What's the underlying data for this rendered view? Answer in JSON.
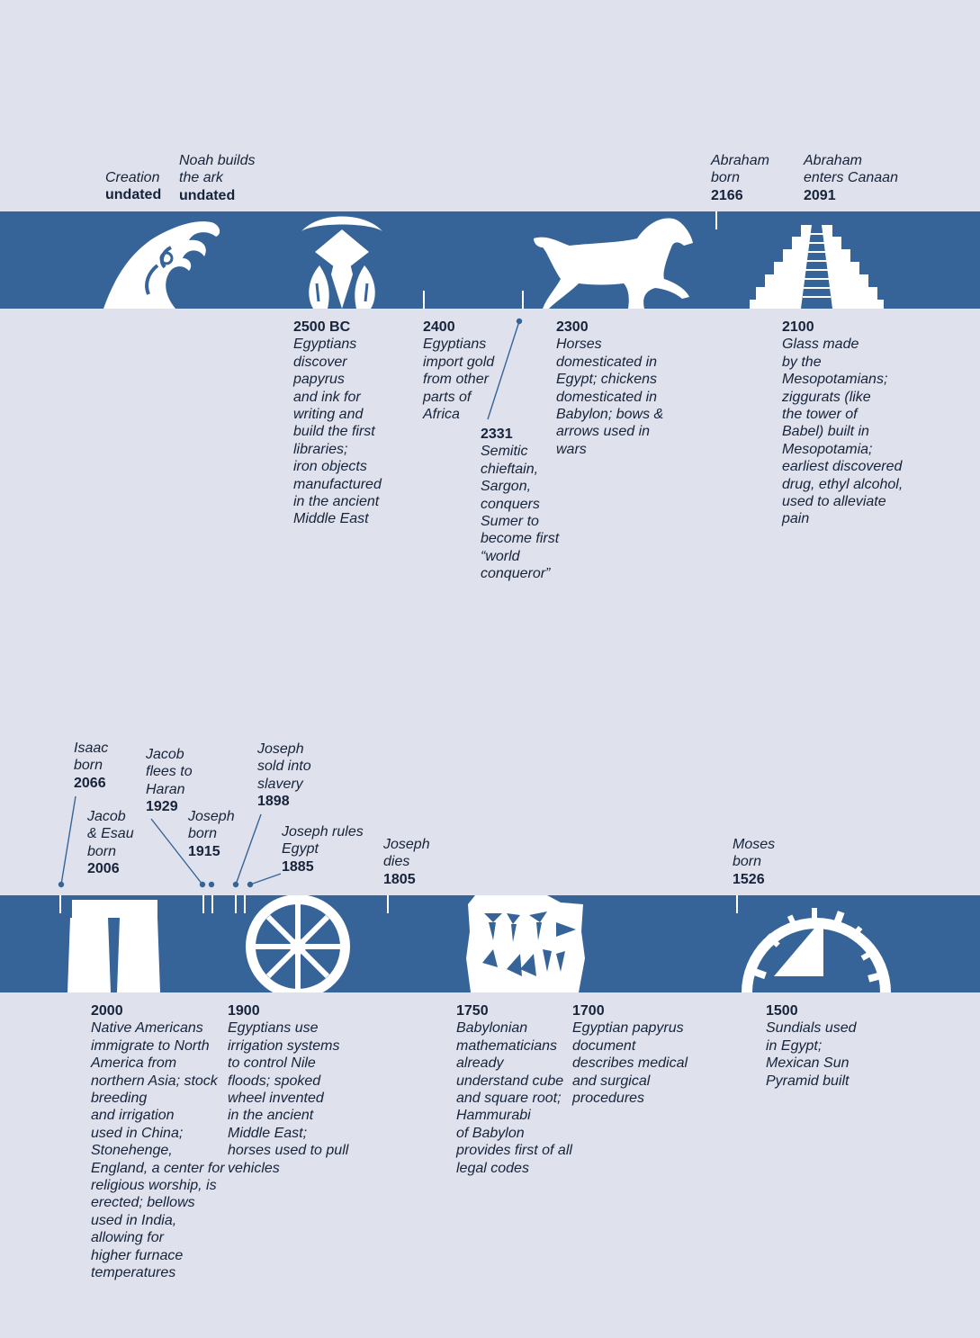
{
  "colors": {
    "background": "#dfe2ec",
    "band": "#366498",
    "icon": "#ffffff",
    "text": "#16233a"
  },
  "top_timeline": {
    "above": [
      {
        "lines": [
          "Creation"
        ],
        "year": "undated"
      },
      {
        "lines": [
          "Noah builds",
          "the ark"
        ],
        "year": "undated"
      },
      {
        "lines": [
          "Abraham",
          "born"
        ],
        "year": "2166"
      },
      {
        "lines": [
          "Abraham",
          "enters Canaan"
        ],
        "year": "2091"
      }
    ],
    "below": [
      {
        "year": "2500 BC",
        "lines": [
          "Egyptians",
          "discover",
          "papyrus",
          "and ink for",
          "writing and",
          "build the first",
          "libraries;",
          "iron objects",
          "manufactured",
          "in the ancient",
          "Middle East"
        ]
      },
      {
        "year": "2400",
        "lines": [
          "Egyptians",
          "import gold",
          "from other",
          "parts of",
          "Africa"
        ]
      },
      {
        "year": "2331",
        "lines": [
          "Semitic",
          "chieftain,",
          "Sargon,",
          "conquers",
          "Sumer to",
          "become first",
          "“world",
          "conqueror”"
        ]
      },
      {
        "year": "2300",
        "lines": [
          "Horses",
          "domesticated in",
          "Egypt; chickens",
          "domesticated in",
          "Babylon; bows &",
          "arrows used in",
          "wars"
        ]
      },
      {
        "year": "2100",
        "lines": [
          "Glass made",
          "by the",
          "Mesopotamians;",
          "ziggurats (like",
          "the tower of",
          "Babel) built in",
          "Mesopotamia;",
          "earliest discovered",
          "drug, ethyl alcohol,",
          "used to alleviate",
          "pain"
        ]
      }
    ],
    "icons": [
      "wave-icon",
      "papyrus-plant-icon",
      "horse-icon",
      "ziggurat-icon"
    ]
  },
  "bottom_timeline": {
    "above": [
      {
        "lines": [
          "Isaac",
          "born"
        ],
        "year": "2066"
      },
      {
        "lines": [
          "Jacob",
          "& Esau",
          "born"
        ],
        "year": "2006"
      },
      {
        "lines": [
          "Jacob",
          "flees to",
          "Haran"
        ],
        "year": "1929"
      },
      {
        "lines": [
          "Joseph",
          "born"
        ],
        "year": "1915"
      },
      {
        "lines": [
          "Joseph",
          "sold into",
          "slavery"
        ],
        "year": "1898"
      },
      {
        "lines": [
          "Joseph rules",
          "Egypt"
        ],
        "year": "1885"
      },
      {
        "lines": [
          "Joseph",
          "dies"
        ],
        "year": "1805"
      },
      {
        "lines": [
          "Moses",
          "born"
        ],
        "year": "1526"
      }
    ],
    "below": [
      {
        "year": "2000",
        "lines": [
          "Native Americans",
          "immigrate to North",
          "America from",
          "northern Asia; stock",
          "breeding",
          "and irrigation",
          "used in China;",
          "Stonehenge,",
          "England, a center for",
          "religious worship, is",
          "erected; bellows",
          "used in India,",
          "allowing for",
          "higher furnace",
          "temperatures"
        ]
      },
      {
        "year": "1900",
        "lines": [
          "Egyptians use",
          "irrigation systems",
          "to control Nile",
          "floods; spoked",
          "wheel invented",
          "in the ancient",
          "Middle East;",
          "horses used to pull",
          "vehicles"
        ]
      },
      {
        "year": "1750",
        "lines": [
          "Babylonian",
          "mathematicians",
          "already",
          "understand cube",
          "and square root;",
          "Hammurabi",
          "of Babylon",
          "provides first of all",
          "legal codes"
        ]
      },
      {
        "year": "1700",
        "lines": [
          "Egyptian papyrus",
          "document",
          "describes medical",
          "and surgical",
          "procedures"
        ]
      },
      {
        "year": "1500",
        "lines": [
          "Sundials used",
          "in Egypt;",
          "Mexican Sun",
          "Pyramid built"
        ]
      }
    ],
    "icons": [
      "stonehenge-icon",
      "spoked-wheel-icon",
      "cuneiform-tablet-icon",
      "sundial-icon"
    ]
  }
}
